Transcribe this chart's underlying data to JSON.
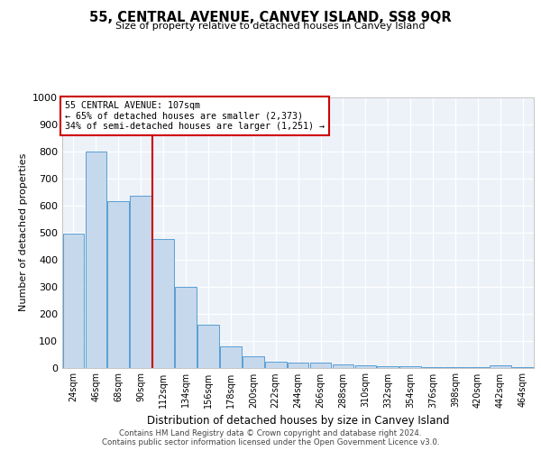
{
  "title": "55, CENTRAL AVENUE, CANVEY ISLAND, SS8 9QR",
  "subtitle": "Size of property relative to detached houses in Canvey Island",
  "xlabel": "Distribution of detached houses by size in Canvey Island",
  "ylabel": "Number of detached properties",
  "footer_line1": "Contains HM Land Registry data © Crown copyright and database right 2024.",
  "footer_line2": "Contains public sector information licensed under the Open Government Licence v3.0.",
  "annotation_title": "55 CENTRAL AVENUE: 107sqm",
  "annotation_line2": "← 65% of detached houses are smaller (2,373)",
  "annotation_line3": "34% of semi-detached houses are larger (1,251) →",
  "property_size": 107,
  "bar_categories": [
    "24sqm",
    "46sqm",
    "68sqm",
    "90sqm",
    "112sqm",
    "134sqm",
    "156sqm",
    "178sqm",
    "200sqm",
    "222sqm",
    "244sqm",
    "266sqm",
    "288sqm",
    "310sqm",
    "332sqm",
    "354sqm",
    "376sqm",
    "398sqm",
    "420sqm",
    "442sqm",
    "464sqm"
  ],
  "bar_values": [
    495,
    800,
    615,
    635,
    475,
    300,
    158,
    78,
    43,
    22,
    20,
    17,
    13,
    8,
    5,
    4,
    3,
    2,
    1,
    8,
    1
  ],
  "bar_color": "#c5d8ec",
  "bar_edge_color": "#5a9fd4",
  "red_line_color": "#cc0000",
  "annotation_box_color": "#cc0000",
  "background_color": "#edf2f9",
  "ylim": [
    0,
    1000
  ],
  "yticks": [
    0,
    100,
    200,
    300,
    400,
    500,
    600,
    700,
    800,
    900,
    1000
  ]
}
